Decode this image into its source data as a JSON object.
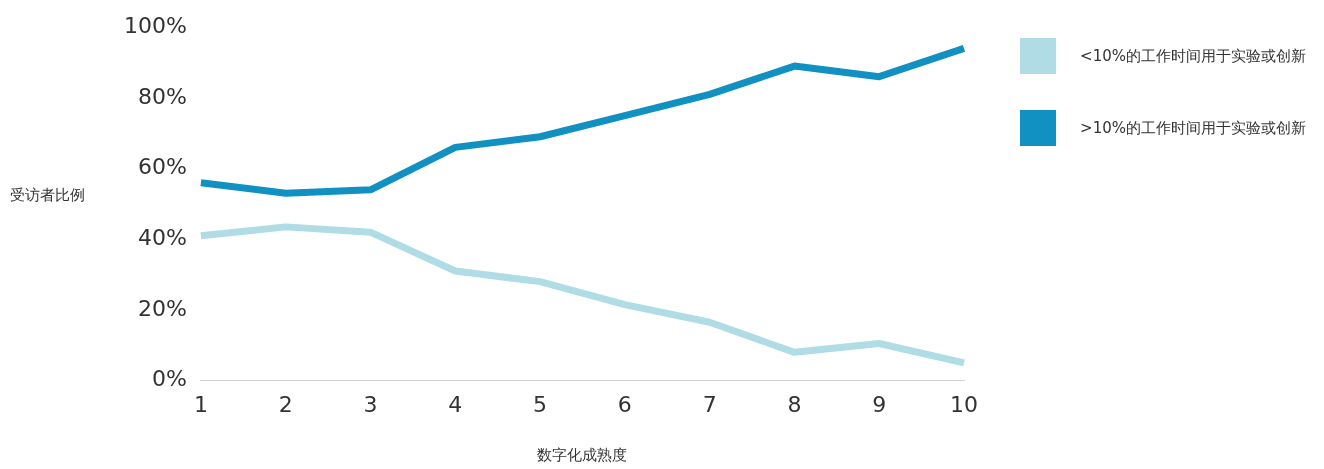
{
  "chart_data": {
    "type": "line",
    "xlabel": "数字化成熟度",
    "ylabel": "受访者比例",
    "categories": [
      "1",
      "2",
      "3",
      "4",
      "5",
      "6",
      "7",
      "8",
      "9",
      "10"
    ],
    "series": [
      {
        "name": "<10%的工作时间用于实验或创新",
        "color": "#b0dce5",
        "values": [
          41,
          43.5,
          42,
          31,
          28,
          21.5,
          16.5,
          8,
          10.5,
          5
        ]
      },
      {
        "name": ">10%的工作时间用于实验或创新",
        "color": "#1190c2",
        "values": [
          56,
          53,
          54,
          66,
          69,
          75,
          81,
          89,
          86,
          94
        ]
      }
    ],
    "ylim": [
      0,
      100
    ],
    "yticks": [
      {
        "value": 0,
        "label": "0%"
      },
      {
        "value": 20,
        "label": "20%"
      },
      {
        "value": 40,
        "label": "40%"
      },
      {
        "value": 60,
        "label": "60%"
      },
      {
        "value": 80,
        "label": "80%"
      },
      {
        "value": 100,
        "label": "100%"
      }
    ],
    "grid": false,
    "legend": "right",
    "marker": "none",
    "line_style": "solid"
  }
}
